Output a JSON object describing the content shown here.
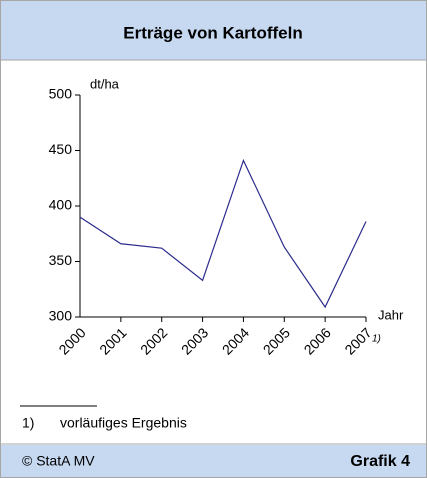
{
  "chart_data": {
    "type": "line",
    "title": "Erträge von Kartoffeln",
    "y_label": "dt/ha",
    "x_label": "Jahr",
    "categories": [
      "2000",
      "2001",
      "2002",
      "2003",
      "2004",
      "2005",
      "2006",
      "2007"
    ],
    "series": [
      {
        "name": "Erträge",
        "color": "#2b2b8c",
        "values": [
          390,
          366,
          362,
          333,
          441,
          363,
          309,
          386
        ]
      }
    ],
    "ylim": [
      300,
      500
    ],
    "yticks": [
      300,
      350,
      400,
      450,
      500
    ],
    "footnote_marker": "1)",
    "footnote": "vorläufiges Ergebnis",
    "source": "© StatA MV",
    "figure_label": "Grafik 4"
  }
}
